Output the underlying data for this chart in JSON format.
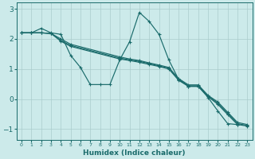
{
  "xlabel": "Humidex (Indice chaleur)",
  "bg_color": "#cceaea",
  "line_color": "#1a6b6b",
  "grid_color": "#aacccc",
  "xlim": [
    -0.5,
    23.5
  ],
  "ylim": [
    -1.35,
    3.2
  ],
  "xticks": [
    0,
    1,
    2,
    3,
    4,
    5,
    6,
    7,
    8,
    9,
    10,
    11,
    12,
    13,
    14,
    15,
    16,
    17,
    18,
    19,
    20,
    21,
    22,
    23
  ],
  "yticks": [
    -1,
    0,
    1,
    2,
    3
  ],
  "series1_x": [
    0,
    1,
    2,
    3,
    4,
    5,
    6,
    7,
    8,
    9,
    10,
    11,
    12,
    13,
    14,
    15,
    16,
    17,
    18,
    19,
    20,
    21,
    22
  ],
  "series1_y": [
    2.2,
    2.2,
    2.35,
    2.2,
    2.15,
    1.45,
    1.05,
    0.48,
    0.48,
    0.48,
    1.3,
    1.9,
    2.88,
    2.58,
    2.15,
    1.3,
    0.65,
    0.42,
    0.42,
    0.05,
    -0.4,
    -0.82,
    -0.85
  ],
  "series2_x": [
    0,
    1,
    2,
    3,
    4,
    5,
    10,
    11,
    12,
    13,
    14,
    15,
    16,
    17,
    18,
    19,
    20,
    21,
    22,
    23
  ],
  "series2_y": [
    2.2,
    2.2,
    2.2,
    2.18,
    1.92,
    1.75,
    1.33,
    1.28,
    1.22,
    1.15,
    1.08,
    1.0,
    0.62,
    0.42,
    0.42,
    0.08,
    -0.18,
    -0.52,
    -0.85,
    -0.9
  ],
  "series3_x": [
    0,
    1,
    2,
    3,
    4,
    5,
    10,
    11,
    12,
    13,
    14,
    15,
    16,
    17,
    18,
    19,
    20,
    21,
    22,
    23
  ],
  "series3_y": [
    2.2,
    2.2,
    2.2,
    2.18,
    1.95,
    1.78,
    1.36,
    1.3,
    1.25,
    1.18,
    1.1,
    1.02,
    0.65,
    0.44,
    0.44,
    0.1,
    -0.14,
    -0.48,
    -0.82,
    -0.88
  ],
  "series4_x": [
    0,
    1,
    2,
    3,
    4,
    5,
    10,
    11,
    12,
    13,
    14,
    15,
    16,
    17,
    18,
    19,
    20,
    21,
    22,
    23
  ],
  "series4_y": [
    2.2,
    2.2,
    2.2,
    2.18,
    2.0,
    1.82,
    1.4,
    1.33,
    1.28,
    1.2,
    1.13,
    1.05,
    0.68,
    0.47,
    0.47,
    0.12,
    -0.1,
    -0.44,
    -0.78,
    -0.85
  ]
}
